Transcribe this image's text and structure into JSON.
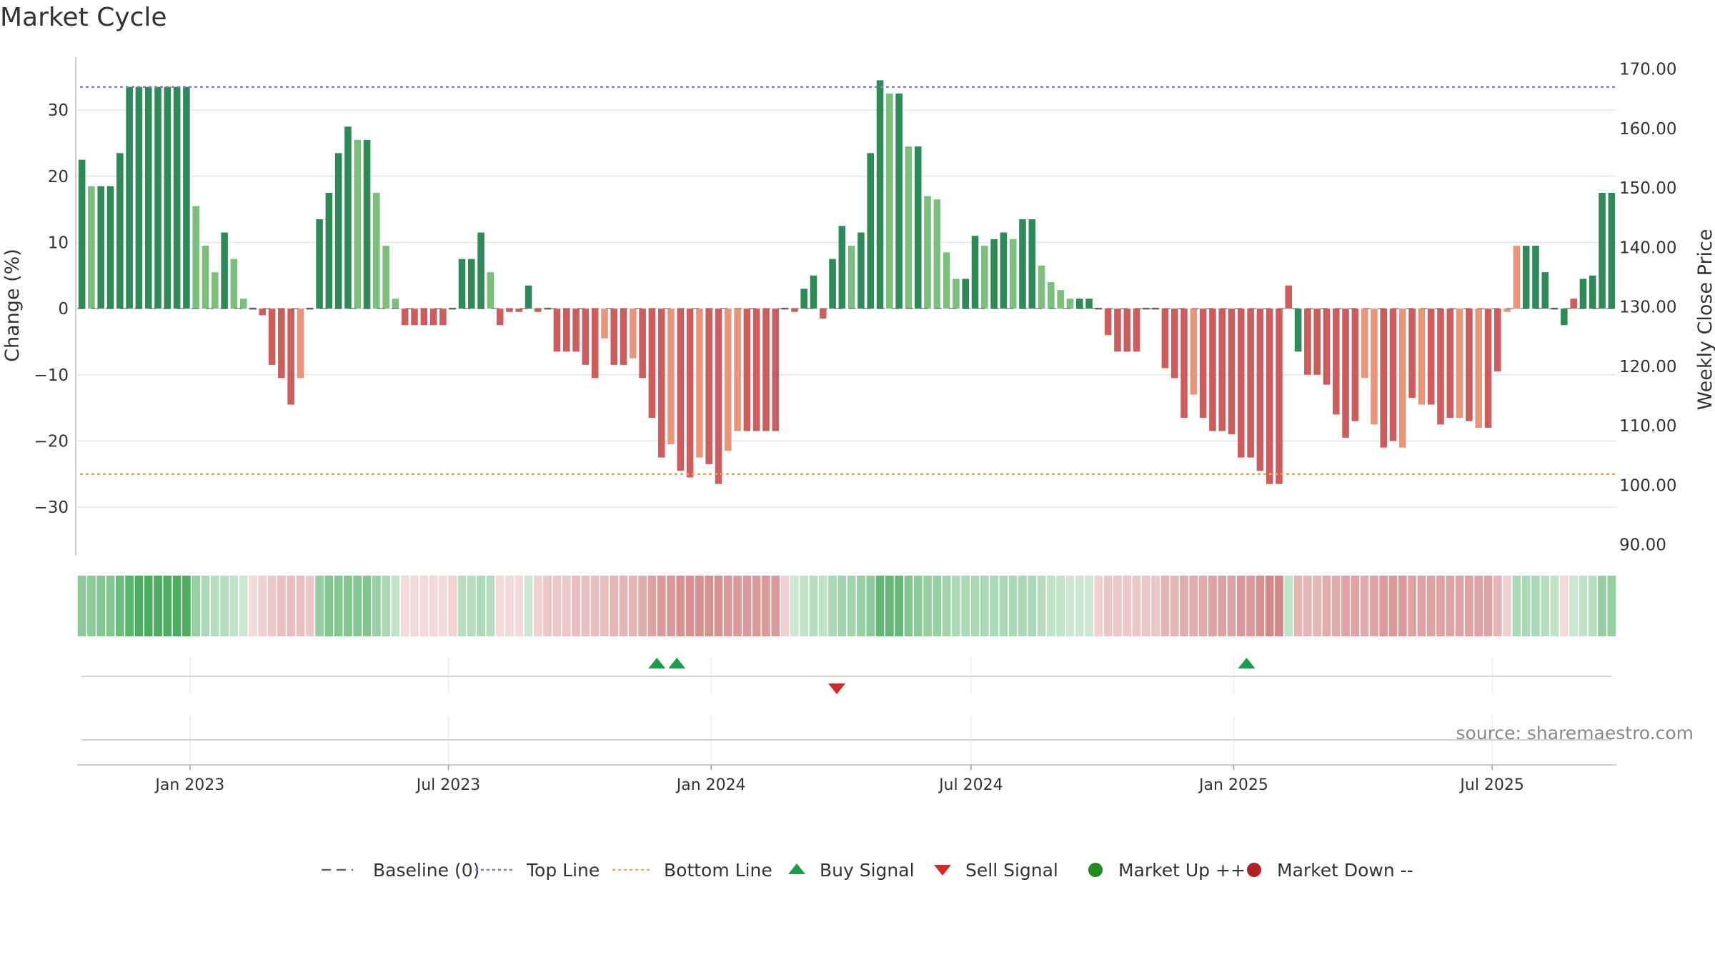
{
  "title": "Market Cycle",
  "source": "source: sharemaestro.com",
  "colors": {
    "strong_up": "#2e8b57",
    "up": "#7cbf7c",
    "down": "#cd5c5c",
    "weak_down": "#e8967a",
    "top_line": "#9370db",
    "bottom_line": "#f4a460",
    "buy_signal": "#1a9e4a",
    "sell_signal": "#d62828",
    "market_up": "#228b22",
    "market_down": "#b22222",
    "grid": "#e6e6e6"
  },
  "legend": [
    {
      "label": "Baseline (0)",
      "icon": "dash-line-icon",
      "color": "#666666"
    },
    {
      "label": "Top Line",
      "icon": "dotted-line-icon",
      "color": "#9370db"
    },
    {
      "label": "Bottom Line",
      "icon": "dotted-line-icon",
      "color": "#f4a460"
    },
    {
      "label": "Buy Signal",
      "icon": "triangle-up-icon",
      "color": "#1a9e4a"
    },
    {
      "label": "Sell Signal",
      "icon": "triangle-down-icon",
      "color": "#d62828"
    },
    {
      "label": "Market Up ++",
      "icon": "circle-icon",
      "color": "#228b22"
    },
    {
      "label": "Market Down --",
      "icon": "circle-icon",
      "color": "#b22222"
    }
  ],
  "chart_data": {
    "type": "bar",
    "ylabel": "Change (%)",
    "y2label": "Weekly Close Price",
    "ylim": [
      -37,
      38
    ],
    "y2lim": [
      88.5,
      172
    ],
    "yticks": [
      30,
      20,
      10,
      0,
      -10,
      -20,
      -30
    ],
    "yticklabels": [
      "30",
      "20",
      "10",
      "0",
      "−10",
      "−20",
      "−30"
    ],
    "y2ticks": [
      170,
      160,
      150,
      140,
      130,
      120,
      110,
      100,
      90
    ],
    "y2ticklabels": [
      "170.00",
      "160.00",
      "150.00",
      "140.00",
      "130.00",
      "120.00",
      "110.00",
      "100.00",
      "90.00"
    ],
    "x_start": "2022-10-14",
    "x_end": "2025-09-26",
    "xticks": [
      "2023-01-01",
      "2023-07-01",
      "2024-01-01",
      "2024-07-01",
      "2025-01-01",
      "2025-07-01"
    ],
    "xticklabels": [
      "Jan 2023",
      "Jul 2023",
      "Jan 2024",
      "Jul 2024",
      "Jan 2025",
      "Jul 2025"
    ],
    "top_line": 33.5,
    "bottom_line": -25,
    "baseline": 0,
    "grid": true,
    "legend_position": "bottom",
    "values": [
      22.5,
      18.5,
      18.5,
      18.5,
      23.5,
      33.5,
      33.5,
      33.5,
      33.5,
      33.5,
      33.5,
      33.5,
      15.5,
      9.5,
      5.5,
      11.5,
      7.5,
      1.5,
      0,
      -1,
      -8.5,
      -10.5,
      -14.5,
      -10.5,
      0,
      13.5,
      17.5,
      23.5,
      27.5,
      25.5,
      25.5,
      17.5,
      9.5,
      1.5,
      -2.5,
      -2.5,
      -2.5,
      -2.5,
      -2.5,
      0,
      7.5,
      7.5,
      11.5,
      5.5,
      -2.5,
      -0.5,
      -0.5,
      3.5,
      -0.5,
      0,
      -6.5,
      -6.5,
      -6.5,
      -8.5,
      -10.5,
      -4.5,
      -8.5,
      -8.5,
      -7.5,
      -10.5,
      -16.5,
      -22.5,
      -20.5,
      -24.5,
      -25.5,
      -22.5,
      -23.5,
      -26.5,
      -21.5,
      -18.5,
      -18.5,
      -18.5,
      -18.5,
      -18.5,
      0,
      -0.5,
      3,
      5,
      -1.5,
      7.5,
      12.5,
      9.5,
      11.5,
      23.5,
      34.5,
      32.5,
      32.5,
      24.5,
      24.5,
      17,
      16.5,
      8.5,
      4.5,
      4.5,
      11,
      9.5,
      10.5,
      11.5,
      10.5,
      13.5,
      13.5,
      6.5,
      4,
      2.8,
      1.5,
      1.5,
      1.5,
      0,
      -4,
      -6.5,
      -6.5,
      -6.5,
      0,
      0,
      -9,
      -10.5,
      -16.5,
      -13,
      -16.5,
      -18.5,
      -18.5,
      -19,
      -22.5,
      -22.5,
      -24.5,
      -26.5,
      -26.5,
      3.5,
      -6.5,
      -10,
      -10,
      -11.5,
      -16,
      -19.5,
      -17,
      -10.5,
      -17.5,
      -21,
      -20,
      -21,
      -13.5,
      -14.5,
      -14.5,
      -17.5,
      -16.5,
      -16.5,
      -17,
      -18,
      -18,
      -9.5,
      -0.5,
      9.5,
      9.5,
      9.5,
      5.5,
      0,
      -2.5,
      1.5,
      4.5,
      5,
      17.5,
      17.5
    ],
    "bar_colors": [
      "strong_up",
      "up",
      "strong_up",
      "strong_up",
      "strong_up",
      "strong_up",
      "strong_up",
      "strong_up",
      "strong_up",
      "strong_up",
      "strong_up",
      "strong_up",
      "up",
      "up",
      "up",
      "strong_up",
      "up",
      "up",
      "down",
      "down",
      "down",
      "down",
      "down",
      "weak_down",
      "down",
      "strong_up",
      "strong_up",
      "strong_up",
      "strong_up",
      "up",
      "strong_up",
      "up",
      "up",
      "up",
      "down",
      "down",
      "down",
      "down",
      "down",
      "down",
      "strong_up",
      "strong_up",
      "strong_up",
      "up",
      "down",
      "down",
      "down",
      "strong_up",
      "down",
      "down",
      "down",
      "down",
      "down",
      "down",
      "down",
      "weak_down",
      "down",
      "down",
      "weak_down",
      "down",
      "down",
      "down",
      "weak_down",
      "down",
      "down",
      "weak_down",
      "down",
      "down",
      "weak_down",
      "weak_down",
      "down",
      "down",
      "down",
      "down",
      "down",
      "down",
      "strong_up",
      "strong_up",
      "down",
      "strong_up",
      "strong_up",
      "up",
      "strong_up",
      "strong_up",
      "strong_up",
      "up",
      "strong_up",
      "up",
      "strong_up",
      "up",
      "up",
      "up",
      "up",
      "strong_up",
      "strong_up",
      "up",
      "strong_up",
      "strong_up",
      "up",
      "strong_up",
      "strong_up",
      "up",
      "up",
      "up",
      "up",
      "strong_up",
      "strong_up",
      "down",
      "down",
      "down",
      "down",
      "down",
      "down",
      "down",
      "down",
      "down",
      "down",
      "weak_down",
      "down",
      "down",
      "down",
      "down",
      "down",
      "down",
      "down",
      "down",
      "down",
      "down",
      "strong_up",
      "down",
      "down",
      "down",
      "down",
      "down",
      "down",
      "weak_down",
      "weak_down",
      "down",
      "down",
      "weak_down",
      "down",
      "weak_down",
      "down",
      "down",
      "down",
      "weak_down",
      "down",
      "weak_down",
      "down",
      "down",
      "weak_down",
      "weak_down",
      "strong_up",
      "strong_up",
      "strong_up",
      "up",
      "strong_up",
      "down",
      "strong_up",
      "strong_up",
      "strong_up",
      "strong_up",
      "strong_up"
    ],
    "heat_strip": [
      0.55,
      0.55,
      0.6,
      0.6,
      0.7,
      0.8,
      0.85,
      0.85,
      0.85,
      0.85,
      0.85,
      0.85,
      0.5,
      0.4,
      0.35,
      0.35,
      0.3,
      0.25,
      -0.2,
      -0.25,
      -0.3,
      -0.35,
      -0.35,
      -0.35,
      -0.3,
      0.5,
      0.6,
      0.6,
      0.6,
      0.6,
      0.6,
      0.5,
      0.4,
      0.3,
      -0.2,
      -0.2,
      -0.2,
      -0.2,
      -0.2,
      -0.25,
      0.35,
      0.35,
      0.4,
      0.35,
      -0.2,
      -0.2,
      -0.2,
      0.25,
      -0.25,
      -0.3,
      -0.3,
      -0.3,
      -0.35,
      -0.35,
      -0.35,
      -0.35,
      -0.4,
      -0.4,
      -0.4,
      -0.45,
      -0.5,
      -0.55,
      -0.55,
      -0.6,
      -0.6,
      -0.6,
      -0.6,
      -0.6,
      -0.55,
      -0.55,
      -0.55,
      -0.55,
      -0.55,
      -0.55,
      -0.25,
      0.25,
      0.3,
      0.35,
      0.3,
      0.4,
      0.45,
      0.45,
      0.5,
      0.55,
      0.75,
      0.75,
      0.75,
      0.6,
      0.55,
      0.5,
      0.5,
      0.45,
      0.4,
      0.4,
      0.4,
      0.4,
      0.4,
      0.4,
      0.4,
      0.4,
      0.4,
      0.35,
      0.3,
      0.3,
      0.25,
      0.25,
      0.25,
      -0.25,
      -0.3,
      -0.3,
      -0.3,
      -0.3,
      -0.3,
      -0.3,
      -0.4,
      -0.4,
      -0.45,
      -0.45,
      -0.45,
      -0.5,
      -0.5,
      -0.5,
      -0.55,
      -0.55,
      -0.6,
      -0.65,
      -0.65,
      0.3,
      -0.4,
      -0.4,
      -0.4,
      -0.45,
      -0.45,
      -0.5,
      -0.5,
      -0.45,
      -0.5,
      -0.55,
      -0.55,
      -0.55,
      -0.5,
      -0.5,
      -0.5,
      -0.5,
      -0.5,
      -0.5,
      -0.5,
      -0.5,
      -0.5,
      -0.4,
      -0.25,
      0.4,
      0.4,
      0.4,
      0.35,
      0.3,
      -0.2,
      0.25,
      0.3,
      0.35,
      0.5,
      0.5
    ],
    "buy_signals": [
      "2023-11-24",
      "2023-12-08",
      "2025-01-10"
    ],
    "sell_signals": [
      "2024-03-29"
    ],
    "market_up": [],
    "market_down": []
  }
}
